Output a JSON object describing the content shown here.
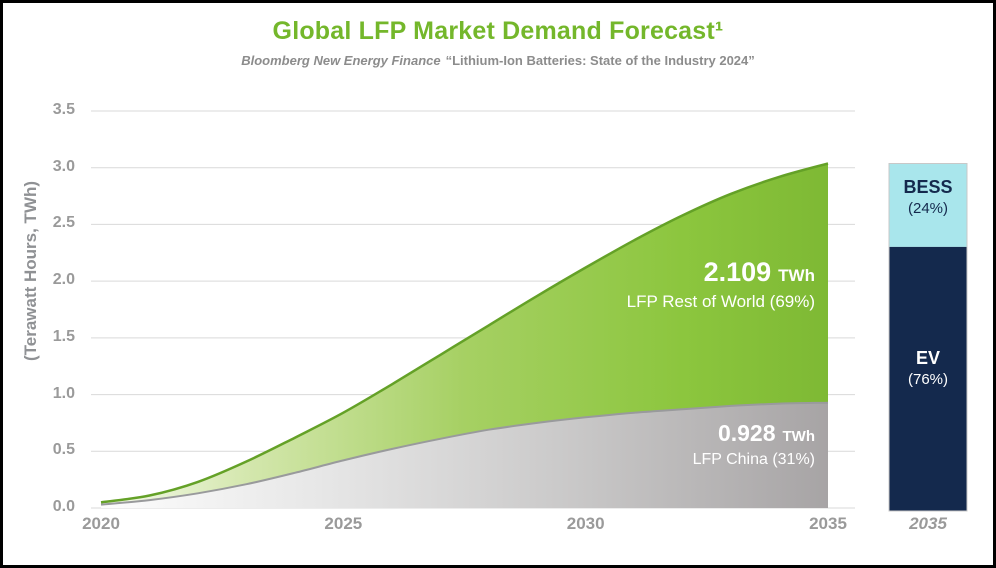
{
  "header": {
    "title": "Global LFP Market Demand Forecast¹",
    "subtitle_source": "Bloomberg New Energy Finance",
    "subtitle_quote": "“Lithium-Ion Batteries: State of the Industry 2024”"
  },
  "colors": {
    "title_green": "#74b72b",
    "axis_text": "#9a9a9a",
    "grid_line": "#d9d9d9",
    "annotation_text": "#ffffff",
    "green_edge": "#64a127",
    "gray_edge": "#999a9c",
    "bar_border": "#c8c8c8"
  },
  "chart_data": {
    "type": "area",
    "title": "Global LFP Market Demand Forecast¹",
    "xlabel": "",
    "ylabel": "(Terawatt Hours, TWh)",
    "ylim": [
      0,
      3.5
    ],
    "yticks": [
      "0.0",
      "0.5",
      "1.0",
      "1.5",
      "2.0",
      "2.5",
      "3.0",
      "3.5"
    ],
    "xticks": [
      "2020",
      "2025",
      "2030",
      "2035"
    ],
    "x": [
      2020,
      2021,
      2022,
      2023,
      2024,
      2025,
      2026,
      2027,
      2028,
      2029,
      2030,
      2031,
      2032,
      2033,
      2034,
      2035
    ],
    "series": [
      {
        "name": "LFP China",
        "values": [
          0.03,
          0.07,
          0.13,
          0.21,
          0.31,
          0.42,
          0.52,
          0.61,
          0.69,
          0.75,
          0.8,
          0.84,
          0.87,
          0.9,
          0.92,
          0.928
        ],
        "gradient": [
          {
            "o": 0,
            "c": "#fdfdfd"
          },
          {
            "o": 0.3,
            "c": "#e7e7e7"
          },
          {
            "o": 0.65,
            "c": "#c9c8c8"
          },
          {
            "o": 1,
            "c": "#a7a4a5"
          }
        ]
      },
      {
        "name": "LFP Rest of World",
        "values": [
          0.02,
          0.04,
          0.1,
          0.2,
          0.31,
          0.42,
          0.57,
          0.74,
          0.92,
          1.12,
          1.32,
          1.52,
          1.71,
          1.87,
          2.0,
          2.109
        ],
        "gradient": [
          {
            "o": 0,
            "c": "#f6faee"
          },
          {
            "o": 0.2,
            "c": "#d4e7ae"
          },
          {
            "o": 0.5,
            "c": "#a6d063"
          },
          {
            "o": 0.8,
            "c": "#8cc63e"
          },
          {
            "o": 1,
            "c": "#7eb934"
          }
        ]
      }
    ],
    "annotations": {
      "rest_of_world": {
        "value": "2.109",
        "unit": "TWh",
        "label": "LFP Rest of World (69%)"
      },
      "china": {
        "value": "0.928",
        "unit": "TWh",
        "label": "LFP China (31%)"
      }
    },
    "bar": {
      "xlabel": "2035",
      "total": 3.037,
      "segments": [
        {
          "name": "BESS",
          "pct_label": "(24%)",
          "fraction": 0.24,
          "color": "#a9e6ec",
          "text_color": "#14294d"
        },
        {
          "name": "EV",
          "pct_label": "(76%)",
          "fraction": 0.76,
          "color": "#14294d",
          "text_color": "#ffffff"
        }
      ]
    }
  }
}
